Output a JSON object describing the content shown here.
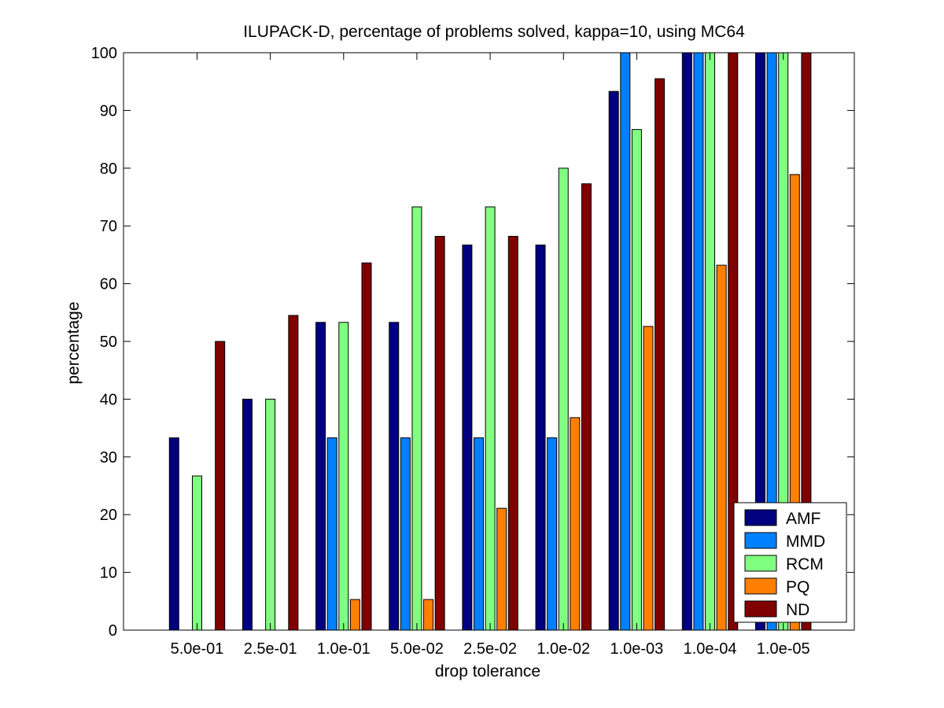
{
  "chart_data": {
    "type": "bar",
    "title": "ILUPACK-D, percentage of problems solved, kappa=10, using MC64",
    "xlabel": "drop tolerance",
    "ylabel": "percentage",
    "ylim": [
      0,
      100
    ],
    "yticks": [
      0,
      10,
      20,
      30,
      40,
      50,
      60,
      70,
      80,
      90,
      100
    ],
    "categories": [
      "5.0e-01",
      "2.5e-01",
      "1.0e-01",
      "5.0e-02",
      "2.5e-02",
      "1.0e-02",
      "1.0e-03",
      "1.0e-04",
      "1.0e-05"
    ],
    "series": [
      {
        "name": "AMF",
        "color": "#000080",
        "values": [
          33.3,
          40.0,
          53.3,
          53.3,
          66.7,
          66.7,
          93.3,
          100,
          100
        ]
      },
      {
        "name": "MMD",
        "color": "#0080ff",
        "values": [
          0,
          0,
          33.3,
          33.3,
          33.3,
          33.3,
          100,
          100,
          100
        ]
      },
      {
        "name": "RCM",
        "color": "#80ff80",
        "values": [
          26.7,
          40.0,
          53.3,
          73.3,
          73.3,
          80.0,
          86.7,
          100,
          100
        ]
      },
      {
        "name": "PQ",
        "color": "#ff8000",
        "values": [
          0,
          0,
          5.3,
          5.3,
          21.1,
          36.8,
          52.6,
          63.2,
          78.9
        ]
      },
      {
        "name": "ND",
        "color": "#800000",
        "values": [
          50.0,
          54.5,
          63.6,
          68.2,
          68.2,
          77.3,
          95.5,
          100,
          100
        ]
      }
    ],
    "grid": false,
    "legend_position": "bottom-right"
  }
}
